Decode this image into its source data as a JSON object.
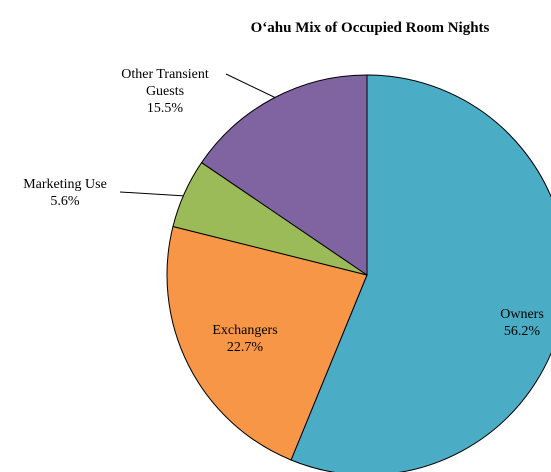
{
  "chart_data": {
    "type": "pie",
    "title": "O‘ahu Mix of Occupied Room Nights",
    "categories": [
      "Owners",
      "Exchangers",
      "Marketing Use",
      "Other Transient Guests"
    ],
    "values": [
      56.2,
      22.7,
      5.6,
      15.5
    ],
    "value_labels": [
      "56.2%",
      "22.7%",
      "5.6%",
      "15.5%"
    ],
    "colors": [
      "#4bacc6",
      "#f79646",
      "#9bbb59",
      "#8064a2"
    ]
  }
}
